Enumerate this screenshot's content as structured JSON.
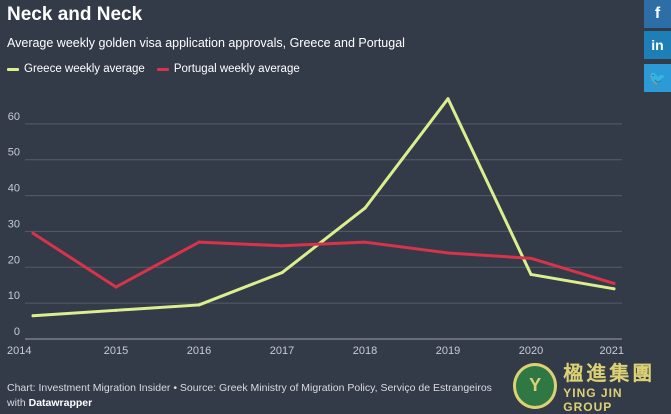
{
  "share": {
    "facebook": "f",
    "linkedin": "in",
    "twitter": "🐦"
  },
  "chart_data": {
    "type": "line",
    "title": "Neck and Neck",
    "subtitle": "Average weekly golden visa application approvals, Greece and Portugal",
    "x": [
      2014,
      2015,
      2016,
      2017,
      2018,
      2019,
      2020,
      2021
    ],
    "ylim": [
      0,
      70
    ],
    "yticks": [
      0,
      10,
      20,
      30,
      40,
      50,
      60
    ],
    "series": [
      {
        "name": "Greece weekly average",
        "color": "#dcef8f",
        "values": [
          6.5,
          8,
          9.5,
          18.5,
          36.5,
          67,
          18,
          14
        ]
      },
      {
        "name": "Portugal weekly average",
        "color": "#d8334a",
        "values": [
          29.5,
          14.5,
          27,
          26,
          27,
          24,
          22.5,
          15.5
        ]
      }
    ],
    "legend_position": "top-left",
    "grid": true
  },
  "footer": {
    "source": "Chart: Investment Migration Insider • Source: Greek Ministry of Migration Policy, Serviço de Estrangeiros",
    "with_prefix": "with",
    "tool": "Datawrapper"
  },
  "watermark": {
    "logo": "Y",
    "cn": "楹進集團",
    "en": "YING JIN GROUP"
  }
}
